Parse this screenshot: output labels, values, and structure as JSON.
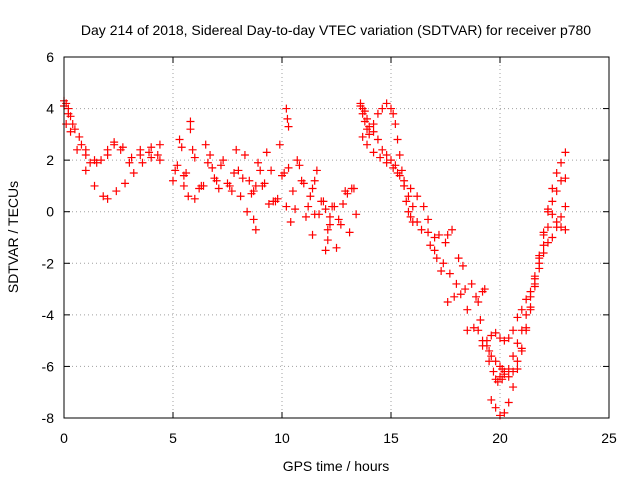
{
  "chart_data": {
    "type": "scatter",
    "title": "Day 214 of 2018, Sidereal Day-to-day VTEC variation (SDTVAR) for receiver p780",
    "xlabel": "GPS time / hours",
    "ylabel": "SDTVAR / TECUs",
    "xlim": [
      0,
      25
    ],
    "ylim": [
      -8,
      6
    ],
    "grid": true,
    "marker": "plus",
    "x_ticks": [
      {
        "value": 0,
        "label": "0"
      },
      {
        "value": 5,
        "label": "5"
      },
      {
        "value": 10,
        "label": "10"
      },
      {
        "value": 15,
        "label": "15"
      },
      {
        "value": 20,
        "label": "20"
      },
      {
        "value": 25,
        "label": "25"
      }
    ],
    "y_ticks": [
      {
        "value": -8,
        "label": "-8"
      },
      {
        "value": -6,
        "label": "-6"
      },
      {
        "value": -4,
        "label": "-4"
      },
      {
        "value": -2,
        "label": "-2"
      },
      {
        "value": 0,
        "label": "0"
      },
      {
        "value": 2,
        "label": "2"
      },
      {
        "value": 4,
        "label": "4"
      },
      {
        "value": 6,
        "label": "6"
      }
    ],
    "series": [
      {
        "name": "SDTVAR",
        "color": "#ff0000",
        "x": [
          0.0,
          0.1,
          0.2,
          0.3,
          0.5,
          0.8,
          1.0,
          1.2,
          1.5,
          2.0,
          2.3,
          2.6,
          3.0,
          3.5,
          4.0,
          4.4,
          0.1,
          0.3,
          0.6,
          1.0,
          1.4,
          1.8,
          2.0,
          2.4,
          2.8,
          3.2,
          3.6,
          4.0,
          4.4,
          0.0,
          0.2,
          0.4,
          0.7,
          1.0,
          1.4,
          1.7,
          2.0,
          2.3,
          2.7,
          3.1,
          3.5,
          3.9,
          4.3,
          5.0,
          5.2,
          5.4,
          5.5,
          5.8,
          6.0,
          6.3,
          6.5,
          6.8,
          7.0,
          7.3,
          7.5,
          7.8,
          8.0,
          8.3,
          8.5,
          8.8,
          9.0,
          9.3,
          9.5,
          9.8,
          10.0,
          10.2,
          10.5,
          10.8,
          11.0,
          11.3,
          11.5,
          11.8,
          12.0,
          12.3,
          12.6,
          12.8,
          13.0,
          13.2,
          13.4,
          5.3,
          5.6,
          5.9,
          6.2,
          6.6,
          6.9,
          7.2,
          7.6,
          7.9,
          8.2,
          8.6,
          8.9,
          9.2,
          9.6,
          9.9,
          10.3,
          10.6,
          10.9,
          11.2,
          11.6,
          11.9,
          12.2,
          12.5,
          12.9,
          13.1,
          5.1,
          5.7,
          6.4,
          6.7,
          7.1,
          7.7,
          8.1,
          8.4,
          8.7,
          9.1,
          9.4,
          9.7,
          10.1,
          10.4,
          10.7,
          11.1,
          11.4,
          11.7,
          12.1,
          12.4,
          12.7,
          13.3,
          5.8,
          6.0,
          5.5,
          10.2,
          10.25,
          10.3,
          8.7,
          8.8,
          11.4,
          11.5,
          12.0,
          12.1,
          12.2,
          13.6,
          13.7,
          13.8,
          13.9,
          14.0,
          14.2,
          14.4,
          14.6,
          14.8,
          15.0,
          15.2,
          15.4,
          15.6,
          15.8,
          16.0,
          16.2,
          16.4,
          13.6,
          13.7,
          13.8,
          13.9,
          14.0,
          14.2,
          14.4,
          14.6,
          14.8,
          15.0,
          15.1,
          15.2,
          15.3,
          15.4,
          15.5,
          15.6,
          15.7,
          15.8,
          15.9,
          16.0,
          13.7,
          13.9,
          14.2,
          14.5,
          14.8,
          15.1,
          15.3,
          15.6,
          15.9,
          16.2,
          16.5,
          16.7,
          16.7,
          16.8,
          17.0,
          17.1,
          17.2,
          17.4,
          17.5,
          17.7,
          17.8,
          18.0,
          18.2,
          18.3,
          18.5,
          18.7,
          18.9,
          19.1,
          19.3,
          17.0,
          17.3,
          17.6,
          17.9,
          18.1,
          18.4,
          18.8,
          19.0,
          19.2,
          17.6,
          18.5,
          19.0,
          19.2,
          19.4,
          19.5,
          19.6,
          19.8,
          20.0,
          20.1,
          20.2,
          20.4,
          20.6,
          20.8,
          21.0,
          21.2,
          21.4,
          21.6,
          21.8,
          22.0,
          22.2,
          22.4,
          22.6,
          22.8,
          23.0,
          19.2,
          19.4,
          19.6,
          19.8,
          20.0,
          20.2,
          20.4,
          20.6,
          20.8,
          21.0,
          21.2,
          21.4,
          21.6,
          21.8,
          22.0,
          22.2,
          22.4,
          22.6,
          22.8,
          23.0,
          19.5,
          19.7,
          19.8,
          19.9,
          20.0,
          20.1,
          20.2,
          20.4,
          20.6,
          20.8,
          21.0,
          21.2,
          21.4,
          21.6,
          21.8,
          22.0,
          22.2,
          22.4,
          22.6,
          22.8,
          23.0,
          19.6,
          19.8,
          20.0,
          20.2,
          20.4,
          20.6,
          20.8,
          21.0,
          21.2,
          21.4,
          21.6,
          21.8,
          22.0,
          22.2,
          22.4,
          22.6,
          22.8,
          23.0
        ],
        "y": [
          4.3,
          4.2,
          4.0,
          3.7,
          3.2,
          2.6,
          2.2,
          1.9,
          1.9,
          2.4,
          2.7,
          2.4,
          1.9,
          2.2,
          2.5,
          2.6,
          3.4,
          3.1,
          2.4,
          1.6,
          1.0,
          0.6,
          0.5,
          0.8,
          1.1,
          1.5,
          1.9,
          2.1,
          2.0,
          4.1,
          3.8,
          3.4,
          2.9,
          2.4,
          2.0,
          2.0,
          2.2,
          2.6,
          2.5,
          2.1,
          2.4,
          2.3,
          2.2,
          1.2,
          1.8,
          2.5,
          1.4,
          3.5,
          2.1,
          1.0,
          2.6,
          1.7,
          1.2,
          2.0,
          1.1,
          1.5,
          1.6,
          2.2,
          1.2,
          1.0,
          1.6,
          2.3,
          1.6,
          0.5,
          1.4,
          0.2,
          0.8,
          1.8,
          1.1,
          0.6,
          1.2,
          0.4,
          0.1,
          0.2,
          -0.3,
          0.3,
          0.7,
          0.9,
          -0.1,
          2.8,
          1.5,
          2.4,
          0.9,
          1.9,
          1.3,
          1.8,
          1.0,
          2.4,
          1.3,
          0.7,
          1.9,
          1.1,
          0.4,
          2.6,
          1.7,
          0.1,
          1.2,
          0.2,
          1.6,
          0.4,
          -0.5,
          -1.4,
          0.8,
          -0.8,
          1.6,
          0.6,
          1.0,
          2.2,
          0.9,
          0.8,
          0.6,
          0.0,
          0.8,
          1.0,
          0.3,
          0.4,
          1.5,
          -0.4,
          2.0,
          -0.2,
          0.9,
          -0.1,
          -0.7,
          0.2,
          -0.5,
          0.9,
          3.2,
          0.5,
          1.0,
          4.0,
          3.6,
          3.3,
          -0.3,
          -0.7,
          -0.9,
          -0.1,
          -1.5,
          -1.1,
          -0.2,
          4.1,
          4.0,
          3.9,
          3.6,
          3.3,
          3.1,
          2.8,
          2.4,
          2.2,
          2.0,
          1.8,
          1.4,
          1.0,
          0.6,
          0.2,
          -0.4,
          -0.7,
          4.2,
          3.8,
          3.5,
          3.2,
          3.0,
          3.4,
          3.8,
          4.0,
          4.2,
          4.0,
          3.8,
          3.4,
          2.8,
          2.2,
          1.6,
          1.0,
          0.4,
          0.0,
          -0.2,
          -0.4,
          2.9,
          2.6,
          2.3,
          2.1,
          1.9,
          1.7,
          1.5,
          1.2,
          0.9,
          0.6,
          0.2,
          -0.3,
          -0.8,
          -1.3,
          -1.0,
          -1.8,
          -0.9,
          -2.0,
          -1.2,
          -2.4,
          -0.7,
          -2.8,
          -3.2,
          -2.1,
          -3.8,
          -2.8,
          -3.3,
          -4.2,
          -3.0,
          -1.5,
          -2.3,
          -3.5,
          -3.3,
          -1.8,
          -3.0,
          -4.5,
          -3.5,
          -3.1,
          -0.9,
          -4.6,
          -4.6,
          -5.0,
          -5.2,
          -5.4,
          -5.6,
          -5.8,
          -6.0,
          -6.1,
          -6.2,
          -6.4,
          -6.2,
          -5.8,
          -5.3,
          -4.5,
          -3.8,
          -2.9,
          -2.2,
          -1.6,
          -1.2,
          -1.0,
          -0.6,
          -0.2,
          0.2,
          -5.2,
          -5.0,
          -4.8,
          -4.7,
          -4.9,
          -5.0,
          -4.9,
          -4.6,
          -4.1,
          -3.8,
          -3.4,
          -3.1,
          -2.6,
          -2.0,
          -1.3,
          -0.6,
          -0.1,
          -0.4,
          -0.6,
          -0.7,
          -5.8,
          -6.2,
          -6.5,
          -6.6,
          -6.4,
          -6.5,
          -6.3,
          -6.1,
          -5.6,
          -5.1,
          -4.6,
          -4.0,
          -3.3,
          -2.5,
          -1.7,
          -0.9,
          0.0,
          0.4,
          0.8,
          1.2,
          1.3,
          -7.3,
          -7.6,
          -7.9,
          -7.8,
          -7.4,
          -6.8,
          -6.1,
          -5.4,
          -4.6,
          -3.7,
          -2.8,
          -1.8,
          -0.8,
          0.1,
          0.9,
          1.5,
          1.9,
          2.3
        ]
      }
    ]
  }
}
